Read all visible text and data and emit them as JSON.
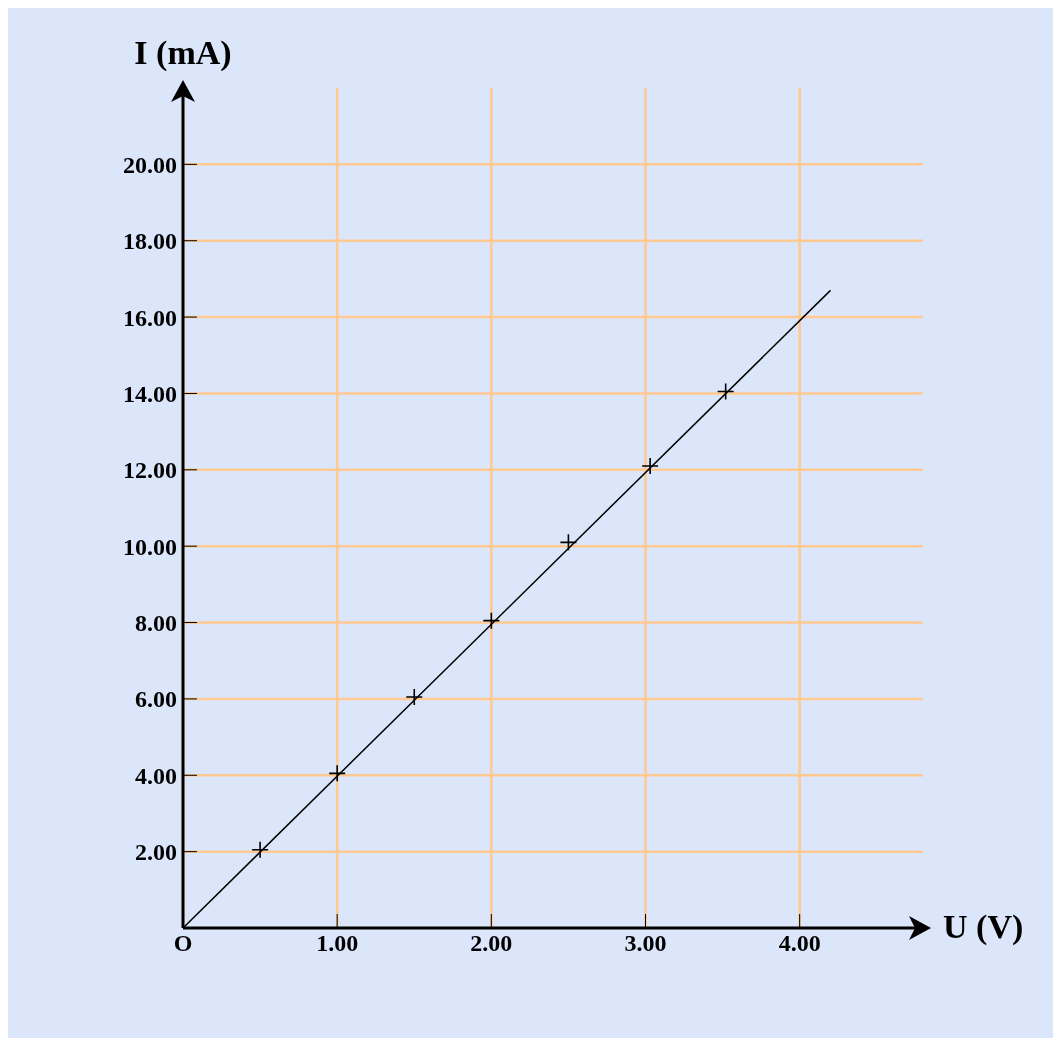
{
  "chart_data": {
    "type": "scatter",
    "xlabel": "U (V)",
    "ylabel": "I (mA)",
    "xlim": [
      0,
      4.8
    ],
    "ylim": [
      0,
      22
    ],
    "xticks": [
      {
        "value": 0,
        "label": "O"
      },
      {
        "value": 1,
        "label": "1.00"
      },
      {
        "value": 2,
        "label": "2.00"
      },
      {
        "value": 3,
        "label": "3.00"
      },
      {
        "value": 4,
        "label": "4.00"
      }
    ],
    "yticks": [
      {
        "value": 2,
        "label": "2.00"
      },
      {
        "value": 4,
        "label": "4.00"
      },
      {
        "value": 6,
        "label": "6.00"
      },
      {
        "value": 8,
        "label": "8.00"
      },
      {
        "value": 10,
        "label": "10.00"
      },
      {
        "value": 12,
        "label": "12.00"
      },
      {
        "value": 14,
        "label": "14.00"
      },
      {
        "value": 16,
        "label": "16.00"
      },
      {
        "value": 18,
        "label": "18.00"
      },
      {
        "value": 20,
        "label": "20.00"
      }
    ],
    "grid": true,
    "marker": "cross",
    "series": [
      {
        "color": "#000000",
        "x": [
          0.5,
          1.0,
          1.5,
          2.0,
          2.5,
          3.03,
          3.52
        ],
        "values": [
          2.05,
          4.05,
          6.05,
          8.05,
          10.1,
          12.1,
          14.05
        ]
      },
      {
        "type": "line",
        "color": "#000000",
        "marker": "none",
        "x": [
          0,
          4.2
        ],
        "values": [
          0,
          16.7
        ]
      }
    ]
  }
}
